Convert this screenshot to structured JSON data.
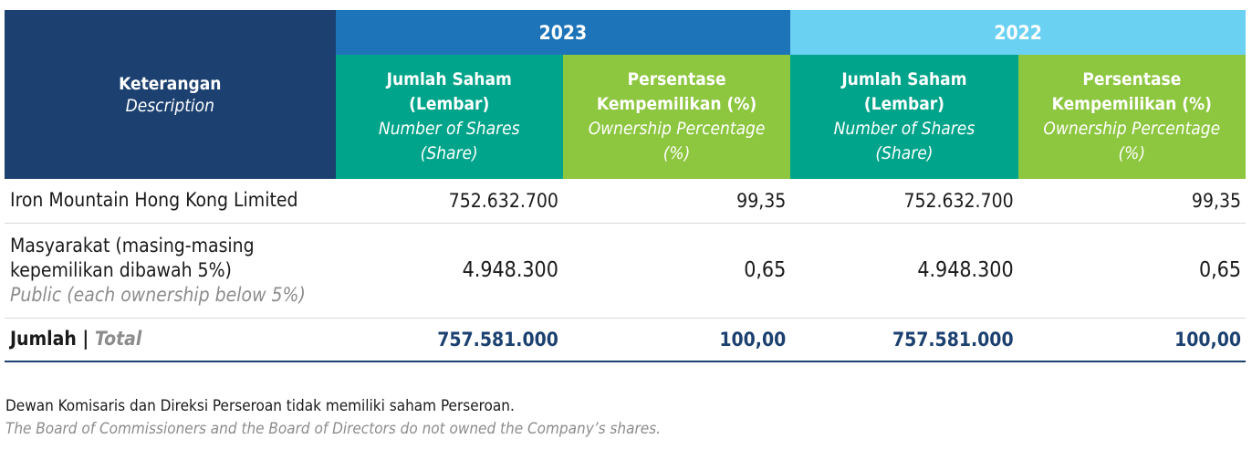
{
  "header": {
    "description": {
      "id": "Keterangan",
      "en": "Description"
    },
    "years": [
      "2023",
      "2022"
    ],
    "columns": [
      {
        "id_line1": "Jumlah Saham",
        "id_line2": "(Lembar)",
        "en_line1": "Number of Shares",
        "en_line2": "(Share)"
      },
      {
        "id_line1": "Persentase",
        "id_line2": "Kempemilikan (%)",
        "en_line1": "Ownership Percentage",
        "en_line2": "(%)"
      }
    ]
  },
  "rows": [
    {
      "desc_line1": "Iron Mountain Hong Kong Limited",
      "values": [
        "752.632.700",
        "99,35",
        "752.632.700",
        "99,35"
      ]
    },
    {
      "desc_line1": "Masyarakat (masing-masing",
      "desc_line2": "kepemilikan dibawah 5%)",
      "desc_en": "Public (each ownership below 5%)",
      "values": [
        "4.948.300",
        "0,65",
        "4.948.300",
        "0,65"
      ]
    }
  ],
  "total": {
    "label_id": "Jumlah",
    "separator": "|",
    "label_en": "Total",
    "values": [
      "757.581.000",
      "100,00",
      "757.581.000",
      "100,00"
    ]
  },
  "note": {
    "id": "Dewan Komisaris dan Direksi Perseroan tidak memiliki saham Perseroan.",
    "en": "The Board of Commissioners and the Board of Directors do not owned the Company’s shares."
  }
}
